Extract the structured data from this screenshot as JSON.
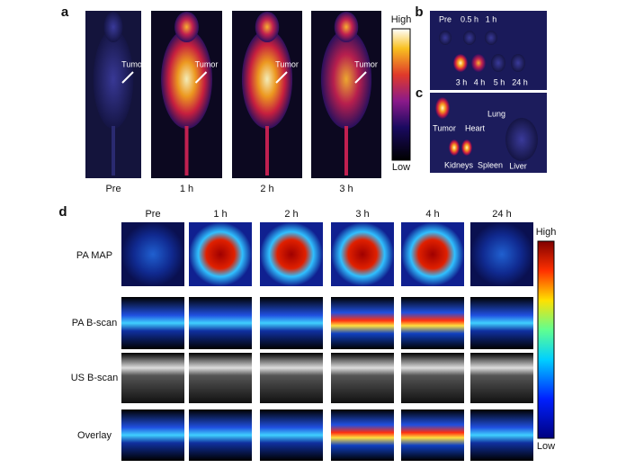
{
  "panel_a": {
    "label": "a",
    "tumor_labels": [
      "Tumor",
      "Tumor",
      "Tumor",
      "Tumor"
    ],
    "colorbar": {
      "high": "High",
      "low": "Low"
    },
    "times": [
      "Pre",
      "1 h",
      "2 h",
      "3 h"
    ]
  },
  "panel_b": {
    "label": "b",
    "top_times": [
      "Pre",
      "0.5 h",
      "1 h"
    ],
    "bottom_times": [
      "3 h",
      "4 h",
      "5 h",
      "24 h"
    ]
  },
  "panel_c": {
    "label": "c",
    "organs": [
      "Tumor",
      "Heart",
      "Lung",
      "Kidneys",
      "Spleen",
      "Liver"
    ]
  },
  "panel_d": {
    "label": "d",
    "columns": [
      "Pre",
      "1 h",
      "2 h",
      "3 h",
      "4 h",
      "24 h"
    ],
    "rows": [
      "PA MAP",
      "PA B-scan",
      "US B-scan",
      "Overlay"
    ],
    "colorbar": {
      "high": "High",
      "low": "Low"
    }
  }
}
